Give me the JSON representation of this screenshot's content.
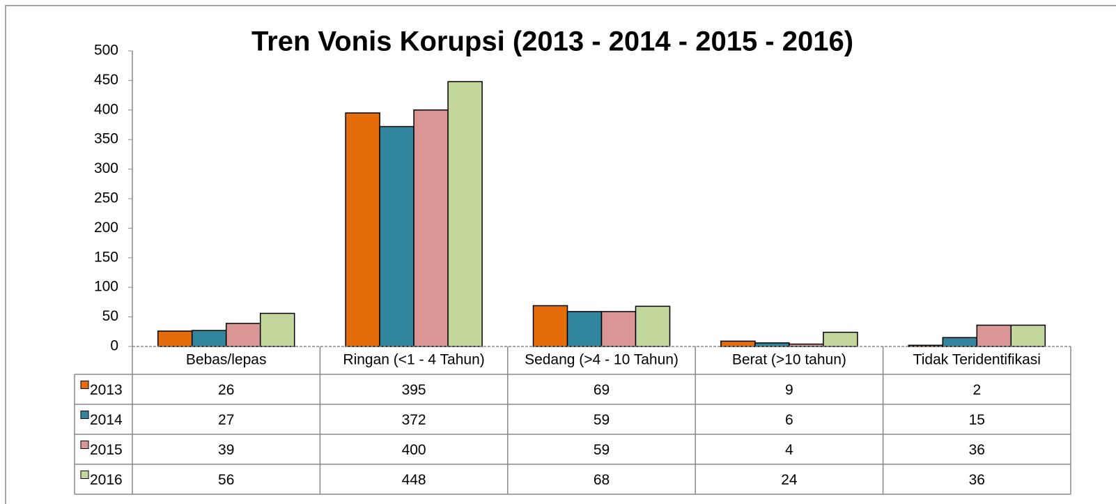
{
  "chart_data": {
    "type": "bar",
    "title": "Tren Vonis Korupsi (2013 - 2014 - 2015 - 2016)",
    "categories": [
      "Bebas/lepas",
      "Ringan (<1 - 4 Tahun)",
      "Sedang (>4 - 10 Tahun)",
      "Berat (>10 tahun)",
      "Tidak Teridentifikasi"
    ],
    "series": [
      {
        "name": "2013",
        "color": "#e46c0a",
        "values": [
          26,
          395,
          69,
          9,
          2
        ]
      },
      {
        "name": "2014",
        "color": "#31859c",
        "values": [
          27,
          372,
          59,
          6,
          15
        ]
      },
      {
        "name": "2015",
        "color": "#d99694",
        "values": [
          39,
          400,
          59,
          4,
          36
        ]
      },
      {
        "name": "2016",
        "color": "#c3d69b",
        "values": [
          56,
          448,
          68,
          24,
          36
        ]
      }
    ],
    "ylim": [
      0,
      500
    ],
    "yticks": [
      0,
      50,
      100,
      150,
      200,
      250,
      300,
      350,
      400,
      450,
      500
    ]
  }
}
